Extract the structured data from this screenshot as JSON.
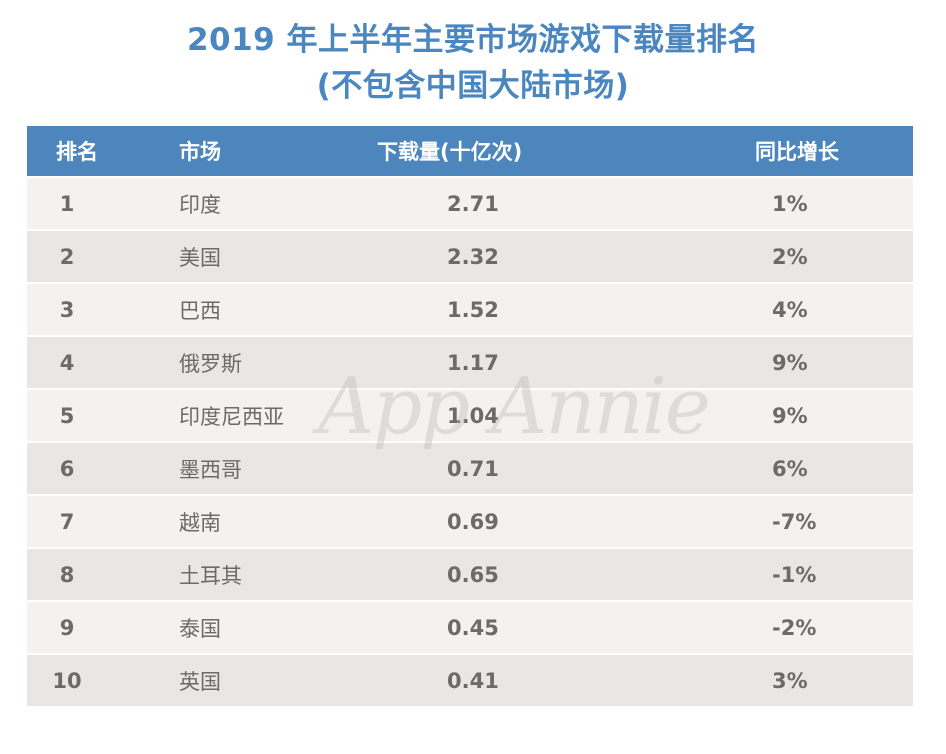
{
  "title": {
    "line1": "2019 年上半年主要市场游戏下载量排名",
    "line2": "(不包含中国大陆市场)"
  },
  "table": {
    "headers": [
      "排名",
      "市场",
      "下载量(十亿次)",
      "同比增长"
    ],
    "rows": [
      {
        "rank": "1",
        "market": "印度",
        "downloads": "2.71",
        "yoy": "1%"
      },
      {
        "rank": "2",
        "market": "美国",
        "downloads": "2.32",
        "yoy": "2%"
      },
      {
        "rank": "3",
        "market": "巴西",
        "downloads": "1.52",
        "yoy": "4%"
      },
      {
        "rank": "4",
        "market": "俄罗斯",
        "downloads": "1.17",
        "yoy": "9%"
      },
      {
        "rank": "5",
        "market": "印度尼西亚",
        "downloads": "1.04",
        "yoy": "9%"
      },
      {
        "rank": "6",
        "market": "墨西哥",
        "downloads": "0.71",
        "yoy": "6%"
      },
      {
        "rank": "7",
        "market": "越南",
        "downloads": "0.69",
        "yoy": "-7%"
      },
      {
        "rank": "8",
        "market": "土耳其",
        "downloads": "0.65",
        "yoy": "-1%"
      },
      {
        "rank": "9",
        "market": "泰国",
        "downloads": "0.45",
        "yoy": "-2%"
      },
      {
        "rank": "10",
        "market": "英国",
        "downloads": "0.41",
        "yoy": "3%"
      }
    ]
  },
  "watermark": "App Annie",
  "colors": {
    "title": "#4a86bf",
    "header_bg": "#4d86bd",
    "row_odd": "#f3f2f0",
    "row_even": "#e8e7e5",
    "text": "#6b6b6b"
  },
  "chart_data": {
    "type": "table",
    "title": "2019 年上半年主要市场游戏下载量排名 (不包含中国大陆市场)",
    "columns": [
      "排名",
      "市场",
      "下载量(十亿次)",
      "同比增长"
    ],
    "categories": [
      "印度",
      "美国",
      "巴西",
      "俄罗斯",
      "印度尼西亚",
      "墨西哥",
      "越南",
      "土耳其",
      "泰国",
      "英国"
    ],
    "series": [
      {
        "name": "下载量(十亿次)",
        "values": [
          2.71,
          2.32,
          1.52,
          1.17,
          1.04,
          0.71,
          0.69,
          0.65,
          0.45,
          0.41
        ]
      },
      {
        "name": "同比增长(%)",
        "values": [
          1,
          2,
          4,
          9,
          9,
          6,
          -7,
          -1,
          -2,
          3
        ]
      }
    ]
  }
}
